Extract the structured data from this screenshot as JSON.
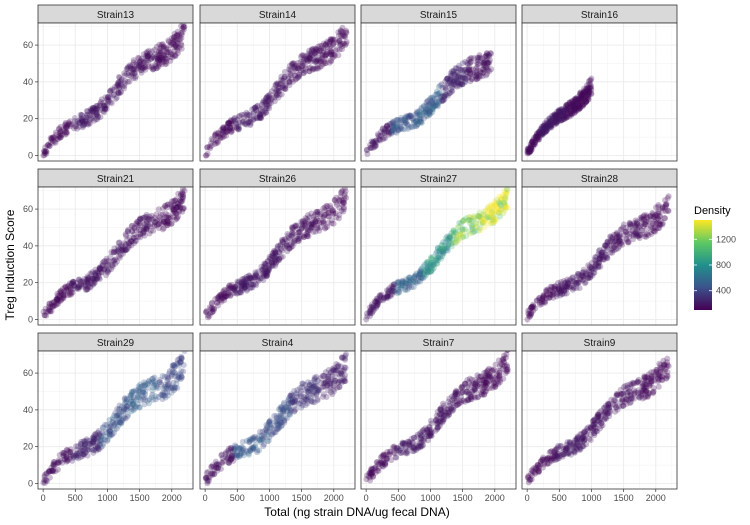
{
  "chart_data": {
    "type": "scatter",
    "xlabel": "Total (ng strain DNA/ug fecal DNA)",
    "ylabel": "Treg Induction Score",
    "xlim": [
      -80,
      2330
    ],
    "ylim": [
      -3,
      72
    ],
    "x_ticks": [
      0,
      500,
      1000,
      1500,
      2000
    ],
    "y_ticks": [
      0,
      20,
      40,
      60
    ],
    "grid": true,
    "legend": {
      "title": "Density",
      "position": "right",
      "type": "colorbar",
      "ticks": [
        400,
        800,
        1200
      ],
      "range": [
        100,
        1500
      ],
      "colors": [
        "#440154",
        "#3b528b",
        "#21908d",
        "#5dc963",
        "#fde725"
      ]
    },
    "panels": [
      {
        "name": "Strain13",
        "x_max": 2200,
        "y_max": 68,
        "spread": 7,
        "slope": 0.03,
        "density": [
          0.02,
          0.06,
          0.05,
          0.04,
          0.02
        ]
      },
      {
        "name": "Strain14",
        "x_max": 2200,
        "y_max": 68,
        "spread": 7,
        "slope": 0.03,
        "density": [
          0.02,
          0.06,
          0.05,
          0.04,
          0.02
        ]
      },
      {
        "name": "Strain15",
        "x_max": 1950,
        "y_max": 52,
        "spread": 7,
        "slope": 0.027,
        "density": [
          0.05,
          0.25,
          0.3,
          0.1,
          0.04
        ]
      },
      {
        "name": "Strain16",
        "x_max": 1000,
        "y_max": 40,
        "spread": 5,
        "slope": 0.038,
        "density": [
          0.03,
          0.07,
          0.06,
          0.03,
          0.02
        ]
      },
      {
        "name": "Strain21",
        "x_max": 2200,
        "y_max": 68,
        "spread": 7,
        "slope": 0.03,
        "density": [
          0.02,
          0.05,
          0.05,
          0.04,
          0.02
        ]
      },
      {
        "name": "Strain26",
        "x_max": 2200,
        "y_max": 68,
        "spread": 7,
        "slope": 0.03,
        "density": [
          0.02,
          0.06,
          0.05,
          0.04,
          0.02
        ]
      },
      {
        "name": "Strain27",
        "x_max": 2200,
        "y_max": 68,
        "spread": 6,
        "slope": 0.03,
        "density": [
          0.05,
          0.3,
          0.5,
          0.75,
          1.0
        ]
      },
      {
        "name": "Strain28",
        "x_max": 2200,
        "y_max": 62,
        "spread": 7,
        "slope": 0.028,
        "density": [
          0.02,
          0.05,
          0.05,
          0.04,
          0.02
        ]
      },
      {
        "name": "Strain29",
        "x_max": 2200,
        "y_max": 68,
        "spread": 8,
        "slope": 0.029,
        "density": [
          0.04,
          0.1,
          0.25,
          0.3,
          0.22
        ]
      },
      {
        "name": "Strain4",
        "x_max": 2200,
        "y_max": 68,
        "spread": 8,
        "slope": 0.029,
        "density": [
          0.04,
          0.28,
          0.25,
          0.15,
          0.08
        ]
      },
      {
        "name": "Strain7",
        "x_max": 2200,
        "y_max": 68,
        "spread": 7,
        "slope": 0.03,
        "density": [
          0.02,
          0.06,
          0.05,
          0.04,
          0.02
        ]
      },
      {
        "name": "Strain9",
        "x_max": 2200,
        "y_max": 66,
        "spread": 7,
        "slope": 0.029,
        "density": [
          0.02,
          0.06,
          0.05,
          0.04,
          0.02
        ]
      }
    ]
  }
}
